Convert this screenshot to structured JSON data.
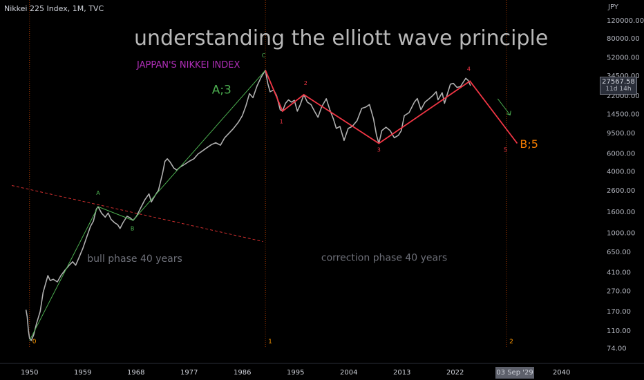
{
  "header": {
    "symbol": "Nikkei 225 Index, 1M, TVC",
    "currency": "JPY"
  },
  "title": "understanding the elliott wave principle",
  "subtitle": "JAPPAN'S NIKKEI INDEX",
  "price_tag": {
    "price": "27567.58",
    "countdown": "11d 14h"
  },
  "crosshair_date": "03 Sep '29",
  "colors": {
    "background": "#000000",
    "price_line": "#b0b0b0",
    "bull_wave": "#4caf50",
    "correction_wave": "#f23645",
    "guides": "#e65100",
    "trendline": "#d32f2f"
  },
  "chart_data": {
    "type": "line",
    "y_scale": "log",
    "ylim": [
      55,
      190000
    ],
    "xlim": [
      1945.0,
      2046.0
    ],
    "y_ticks": [
      "120000.00",
      "80000.00",
      "52000.00",
      "34500.00",
      "22000.00",
      "14500.00",
      "9500.00",
      "6000.00",
      "4000.00",
      "2600.00",
      "1600.00",
      "1000.00",
      "650.00",
      "410.00",
      "270.00",
      "170.00",
      "110.00",
      "74.00"
    ],
    "x_ticks": [
      {
        "label": "1950",
        "x": 1950
      },
      {
        "label": "1959",
        "x": 1959
      },
      {
        "label": "1968",
        "x": 1968
      },
      {
        "label": "1977",
        "x": 1977
      },
      {
        "label": "1986",
        "x": 1986
      },
      {
        "label": "1995",
        "x": 1995
      },
      {
        "label": "2004",
        "x": 2004
      },
      {
        "label": "2013",
        "x": 2013
      },
      {
        "label": "2022",
        "x": 2022
      },
      {
        "label": "2040",
        "x": 2040
      }
    ],
    "series": [
      {
        "points": [
          [
            1949.4,
            176
          ],
          [
            1949.6,
            150
          ],
          [
            1949.8,
            110
          ],
          [
            1950.0,
            92
          ],
          [
            1950.3,
            88
          ],
          [
            1950.7,
            100
          ],
          [
            1951.2,
            130
          ],
          [
            1951.8,
            170
          ],
          [
            1952.3,
            260
          ],
          [
            1952.8,
            330
          ],
          [
            1953.1,
            380
          ],
          [
            1953.5,
            340
          ],
          [
            1954.0,
            350
          ],
          [
            1954.7,
            330
          ],
          [
            1955.3,
            380
          ],
          [
            1956.0,
            430
          ],
          [
            1956.7,
            480
          ],
          [
            1957.3,
            520
          ],
          [
            1957.8,
            480
          ],
          [
            1958.3,
            560
          ],
          [
            1959.0,
            700
          ],
          [
            1959.7,
            920
          ],
          [
            1960.3,
            1150
          ],
          [
            1960.8,
            1300
          ],
          [
            1961.3,
            1700
          ],
          [
            1961.6,
            1800
          ],
          [
            1962.2,
            1550
          ],
          [
            1962.8,
            1420
          ],
          [
            1963.3,
            1560
          ],
          [
            1963.8,
            1350
          ],
          [
            1964.4,
            1250
          ],
          [
            1964.9,
            1200
          ],
          [
            1965.3,
            1100
          ],
          [
            1965.8,
            1250
          ],
          [
            1966.5,
            1450
          ],
          [
            1967.0,
            1400
          ],
          [
            1967.5,
            1320
          ],
          [
            1968.1,
            1450
          ],
          [
            1968.8,
            1750
          ],
          [
            1969.5,
            2100
          ],
          [
            1970.2,
            2400
          ],
          [
            1970.6,
            2000
          ],
          [
            1971.2,
            2300
          ],
          [
            1971.8,
            2600
          ],
          [
            1972.5,
            3800
          ],
          [
            1972.9,
            5000
          ],
          [
            1973.3,
            5300
          ],
          [
            1973.8,
            4900
          ],
          [
            1974.4,
            4300
          ],
          [
            1974.9,
            4100
          ],
          [
            1975.5,
            4400
          ],
          [
            1976.3,
            4700
          ],
          [
            1977.0,
            5000
          ],
          [
            1977.8,
            5300
          ],
          [
            1978.5,
            5900
          ],
          [
            1979.2,
            6300
          ],
          [
            1980.0,
            6800
          ],
          [
            1980.8,
            7300
          ],
          [
            1981.5,
            7600
          ],
          [
            1982.3,
            7200
          ],
          [
            1983.0,
            8500
          ],
          [
            1983.8,
            9500
          ],
          [
            1984.5,
            10500
          ],
          [
            1985.3,
            12000
          ],
          [
            1986.0,
            14000
          ],
          [
            1986.6,
            17500
          ],
          [
            1987.2,
            23000
          ],
          [
            1987.8,
            21000
          ],
          [
            1988.5,
            27500
          ],
          [
            1989.2,
            33500
          ],
          [
            1989.9,
            39000
          ],
          [
            1990.3,
            29000
          ],
          [
            1990.7,
            24000
          ],
          [
            1991.3,
            25000
          ],
          [
            1991.8,
            22000
          ],
          [
            1992.4,
            16000
          ],
          [
            1992.8,
            15500
          ],
          [
            1993.3,
            18500
          ],
          [
            1993.8,
            20000
          ],
          [
            1994.3,
            19000
          ],
          [
            1994.8,
            19800
          ],
          [
            1995.3,
            15500
          ],
          [
            1995.8,
            18000
          ],
          [
            1996.4,
            22500
          ],
          [
            1997.0,
            19000
          ],
          [
            1997.6,
            18000
          ],
          [
            1998.2,
            15500
          ],
          [
            1998.8,
            13500
          ],
          [
            1999.4,
            17000
          ],
          [
            2000.2,
            20500
          ],
          [
            2000.8,
            16000
          ],
          [
            2001.4,
            13000
          ],
          [
            2001.9,
            10500
          ],
          [
            2002.5,
            11000
          ],
          [
            2003.2,
            8000
          ],
          [
            2003.9,
            10500
          ],
          [
            2004.6,
            11000
          ],
          [
            2005.4,
            12500
          ],
          [
            2006.2,
            16500
          ],
          [
            2006.9,
            17000
          ],
          [
            2007.5,
            18000
          ],
          [
            2008.2,
            13000
          ],
          [
            2008.7,
            9000
          ],
          [
            2009.1,
            7500
          ],
          [
            2009.6,
            10000
          ],
          [
            2010.3,
            10800
          ],
          [
            2011.0,
            10000
          ],
          [
            2011.7,
            8500
          ],
          [
            2012.4,
            9000
          ],
          [
            2012.9,
            10000
          ],
          [
            2013.4,
            14000
          ],
          [
            2014.2,
            15000
          ],
          [
            2015.1,
            19000
          ],
          [
            2015.6,
            20600
          ],
          [
            2016.2,
            16000
          ],
          [
            2016.9,
            19000
          ],
          [
            2017.6,
            20500
          ],
          [
            2018.2,
            22000
          ],
          [
            2018.8,
            24000
          ],
          [
            2019.1,
            20000
          ],
          [
            2019.8,
            23500
          ],
          [
            2020.2,
            18500
          ],
          [
            2020.7,
            23000
          ],
          [
            2021.2,
            28500
          ],
          [
            2021.7,
            29000
          ],
          [
            2022.3,
            26500
          ],
          [
            2022.9,
            27000
          ],
          [
            2023.4,
            30000
          ],
          [
            2023.8,
            32500
          ],
          [
            2024.2,
            31000
          ],
          [
            2024.6,
            27567.58
          ]
        ]
      }
    ],
    "wave_lines": [
      {
        "name": "bull_wave",
        "points": [
          [
            1950.0,
            88
          ],
          [
            1961.6,
            1800
          ],
          [
            1967.5,
            1320
          ],
          [
            1989.9,
            39000
          ]
        ]
      },
      {
        "name": "correction_wave",
        "points": [
          [
            1989.9,
            39000
          ],
          [
            1992.8,
            15500
          ],
          [
            1996.4,
            22500
          ],
          [
            2009.1,
            7500
          ],
          [
            2024.5,
            30500
          ],
          [
            2032.5,
            7500
          ]
        ]
      }
    ],
    "trendline": {
      "from": [
        1947.0,
        2900
      ],
      "to": [
        1989.5,
        820
      ]
    },
    "vertical_guides": [
      {
        "x": 1950.0,
        "label": "0"
      },
      {
        "x": 1989.9,
        "label": "1"
      },
      {
        "x": 2030.7,
        "label": "2"
      }
    ],
    "wave_labels": [
      {
        "text": "A",
        "x": 1961.6,
        "y": 2350,
        "color": "bull_wave",
        "size": 8
      },
      {
        "text": "B",
        "x": 1967.4,
        "y": 1050,
        "color": "bull_wave",
        "size": 8
      },
      {
        "text": "C",
        "x": 1989.6,
        "y": 52000,
        "color": "bull_wave",
        "size": 8
      },
      {
        "text": "A;3",
        "x": 1982.5,
        "y": 23000,
        "color": "bull_wave",
        "size": 17
      },
      {
        "text": "1",
        "x": 1992.6,
        "y": 11800,
        "color": "correction_wave",
        "size": 8
      },
      {
        "text": "2",
        "x": 1996.7,
        "y": 28000,
        "color": "correction_wave",
        "size": 8
      },
      {
        "text": "3",
        "x": 2009.1,
        "y": 6200,
        "color": "correction_wave",
        "size": 8
      },
      {
        "text": "4",
        "x": 2024.3,
        "y": 38500,
        "color": "correction_wave",
        "size": 8
      },
      {
        "text": "5",
        "x": 2030.5,
        "y": 6200,
        "color": "correction_wave",
        "size": 8
      },
      {
        "text": "B;5",
        "x": 2034.5,
        "y": 6800,
        "color": "orange",
        "size": 16
      }
    ],
    "annotations": [
      {
        "text": "bull phase 40 years",
        "x": 1967.8,
        "y": 520
      },
      {
        "text": "correction phase 40 years",
        "x": 2010.0,
        "y": 530
      }
    ],
    "arrow": {
      "from": [
        2029.2,
        20500
      ],
      "to": [
        2031.3,
        14200
      ]
    }
  }
}
